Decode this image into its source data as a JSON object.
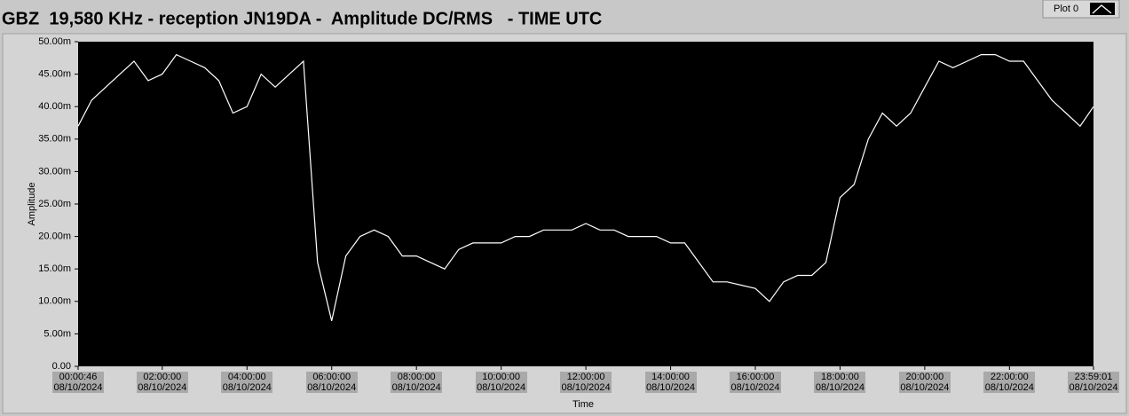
{
  "chart_data": {
    "type": "line",
    "title": "GBZ  19,580 KHz - reception JN19DA -  Amplitude DC/RMS   - TIME UTC",
    "x_label": "Time",
    "y_label": "Amplitude",
    "x": [
      "2024-08-10T00:00:46",
      "2024-08-10T00:20:00",
      "2024-08-10T00:40:00",
      "2024-08-10T01:00:00",
      "2024-08-10T01:20:00",
      "2024-08-10T01:40:00",
      "2024-08-10T02:00:00",
      "2024-08-10T02:20:00",
      "2024-08-10T02:40:00",
      "2024-08-10T03:00:00",
      "2024-08-10T03:20:00",
      "2024-08-10T03:40:00",
      "2024-08-10T04:00:00",
      "2024-08-10T04:20:00",
      "2024-08-10T04:40:00",
      "2024-08-10T05:00:00",
      "2024-08-10T05:20:00",
      "2024-08-10T05:40:00",
      "2024-08-10T06:00:00",
      "2024-08-10T06:20:00",
      "2024-08-10T06:40:00",
      "2024-08-10T07:00:00",
      "2024-08-10T07:20:00",
      "2024-08-10T07:40:00",
      "2024-08-10T08:00:00",
      "2024-08-10T08:20:00",
      "2024-08-10T08:40:00",
      "2024-08-10T09:00:00",
      "2024-08-10T09:20:00",
      "2024-08-10T09:40:00",
      "2024-08-10T10:00:00",
      "2024-08-10T10:20:00",
      "2024-08-10T10:40:00",
      "2024-08-10T11:00:00",
      "2024-08-10T11:20:00",
      "2024-08-10T11:40:00",
      "2024-08-10T12:00:00",
      "2024-08-10T12:20:00",
      "2024-08-10T12:40:00",
      "2024-08-10T13:00:00",
      "2024-08-10T13:20:00",
      "2024-08-10T13:40:00",
      "2024-08-10T14:00:00",
      "2024-08-10T14:20:00",
      "2024-08-10T14:40:00",
      "2024-08-10T15:00:00",
      "2024-08-10T15:20:00",
      "2024-08-10T15:40:00",
      "2024-08-10T16:00:00",
      "2024-08-10T16:20:00",
      "2024-08-10T16:40:00",
      "2024-08-10T17:00:00",
      "2024-08-10T17:20:00",
      "2024-08-10T17:40:00",
      "2024-08-10T18:00:00",
      "2024-08-10T18:20:00",
      "2024-08-10T18:40:00",
      "2024-08-10T19:00:00",
      "2024-08-10T19:20:00",
      "2024-08-10T19:40:00",
      "2024-08-10T20:00:00",
      "2024-08-10T20:20:00",
      "2024-08-10T20:40:00",
      "2024-08-10T21:00:00",
      "2024-08-10T21:20:00",
      "2024-08-10T21:40:00",
      "2024-08-10T22:00:00",
      "2024-08-10T22:20:00",
      "2024-08-10T22:40:00",
      "2024-08-10T23:00:00",
      "2024-08-10T23:20:00",
      "2024-08-10T23:40:00",
      "2024-08-10T23:59:01"
    ],
    "series": [
      {
        "name": "Plot 0",
        "color": "#ffffff",
        "values": [
          0.037,
          0.041,
          0.043,
          0.045,
          0.047,
          0.044,
          0.045,
          0.048,
          0.047,
          0.046,
          0.044,
          0.039,
          0.04,
          0.045,
          0.043,
          0.045,
          0.047,
          0.016,
          0.007,
          0.017,
          0.02,
          0.021,
          0.02,
          0.017,
          0.017,
          0.016,
          0.015,
          0.018,
          0.019,
          0.019,
          0.019,
          0.02,
          0.02,
          0.021,
          0.021,
          0.021,
          0.022,
          0.021,
          0.021,
          0.02,
          0.02,
          0.02,
          0.019,
          0.019,
          0.016,
          0.013,
          0.013,
          0.0125,
          0.012,
          0.01,
          0.013,
          0.014,
          0.014,
          0.016,
          0.026,
          0.028,
          0.035,
          0.039,
          0.037,
          0.039,
          0.043,
          0.047,
          0.046,
          0.047,
          0.048,
          0.048,
          0.047,
          0.047,
          0.044,
          0.041,
          0.039,
          0.037,
          0.04
        ]
      }
    ],
    "xlim": [
      "2024-08-10T00:00:46",
      "2024-08-10T23:59:01"
    ],
    "xticks": [
      {
        "value": "2024-08-10T00:00:46",
        "label": "00:00:46 08/10/2024"
      },
      {
        "value": "2024-08-10T02:00:00",
        "label": "02:00:00 08/10/2024"
      },
      {
        "value": "2024-08-10T04:00:00",
        "label": "04:00:00 08/10/2024"
      },
      {
        "value": "2024-08-10T06:00:00",
        "label": "06:00:00 08/10/2024"
      },
      {
        "value": "2024-08-10T08:00:00",
        "label": "08:00:00 08/10/2024"
      },
      {
        "value": "2024-08-10T10:00:00",
        "label": "10:00:00 08/10/2024"
      },
      {
        "value": "2024-08-10T12:00:00",
        "label": "12:00:00 08/10/2024"
      },
      {
        "value": "2024-08-10T14:00:00",
        "label": "14:00:00 08/10/2024"
      },
      {
        "value": "2024-08-10T16:00:00",
        "label": "16:00:00 08/10/2024"
      },
      {
        "value": "2024-08-10T18:00:00",
        "label": "18:00:00 08/10/2024"
      },
      {
        "value": "2024-08-10T20:00:00",
        "label": "20:00:00 08/10/2024"
      },
      {
        "value": "2024-08-10T22:00:00",
        "label": "22:00:00 08/10/2024"
      },
      {
        "value": "2024-08-10T23:59:01",
        "label": "23:59:01 08/10/2024"
      }
    ],
    "ylim": [
      0,
      0.05
    ],
    "yticks": [
      {
        "value": 0,
        "label": "0.00"
      },
      {
        "value": 0.005,
        "label": "5.00m"
      },
      {
        "value": 0.01,
        "label": "10.00m"
      },
      {
        "value": 0.015,
        "label": "15.00m"
      },
      {
        "value": 0.02,
        "label": "20.00m"
      },
      {
        "value": 0.025,
        "label": "25.00m"
      },
      {
        "value": 0.03,
        "label": "30.00m"
      },
      {
        "value": 0.035,
        "label": "35.00m"
      },
      {
        "value": 0.04,
        "label": "40.00m"
      },
      {
        "value": 0.045,
        "label": "45.00m"
      },
      {
        "value": 0.05,
        "label": "50.00m"
      }
    ],
    "grid": false
  }
}
